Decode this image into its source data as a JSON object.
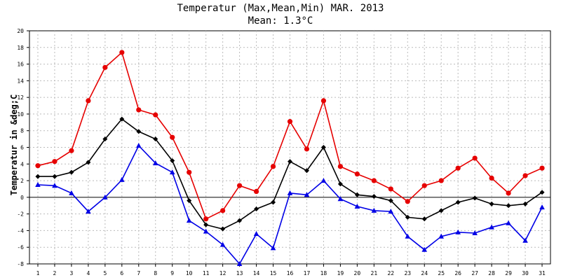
{
  "chart_data": {
    "type": "line",
    "title": "Temperatur (Max,Mean,Min) MAR. 2013",
    "subtitle": "Mean: 1.3°C",
    "ylabel": "Temperatur in &deg;C",
    "xlabel": "",
    "ylim": [
      -8,
      20
    ],
    "yticks": [
      -8,
      -6,
      -4,
      -2,
      0,
      2,
      4,
      6,
      8,
      10,
      12,
      14,
      16,
      18,
      20
    ],
    "x": [
      1,
      2,
      3,
      4,
      5,
      6,
      7,
      8,
      9,
      10,
      11,
      12,
      13,
      14,
      15,
      16,
      17,
      18,
      19,
      20,
      21,
      22,
      23,
      24,
      25,
      26,
      27,
      28,
      29,
      30,
      31
    ],
    "grid": true,
    "series": [
      {
        "key": "max",
        "color": "#e60000",
        "marker": "circle",
        "values": [
          3.8,
          4.3,
          5.6,
          11.6,
          15.6,
          17.4,
          10.5,
          9.9,
          7.2,
          3.0,
          -2.6,
          -1.6,
          1.4,
          0.7,
          3.7,
          9.1,
          5.8,
          11.6,
          3.7,
          2.8,
          2.0,
          1.0,
          -0.5,
          1.4,
          2.0,
          3.5,
          4.7,
          2.3,
          0.5,
          2.6,
          3.5
        ]
      },
      {
        "key": "mean",
        "color": "#000000",
        "marker": "diamond",
        "values": [
          2.5,
          2.5,
          3.0,
          4.2,
          7.0,
          9.4,
          7.9,
          7.0,
          4.4,
          -0.4,
          -3.3,
          -3.8,
          -2.8,
          -1.4,
          -0.6,
          4.3,
          3.2,
          6.0,
          1.6,
          0.3,
          0.1,
          -0.4,
          -2.4,
          -2.6,
          -1.6,
          -0.6,
          -0.1,
          -0.8,
          -1.0,
          -0.8,
          0.6
        ]
      },
      {
        "key": "min",
        "color": "#0000e6",
        "marker": "triangle",
        "values": [
          1.5,
          1.4,
          0.5,
          -1.7,
          0.0,
          2.1,
          6.2,
          4.1,
          3.0,
          -2.8,
          -4.1,
          -5.7,
          -8.0,
          -4.4,
          -6.1,
          0.5,
          0.3,
          2.0,
          -0.2,
          -1.1,
          -1.6,
          -1.7,
          -4.7,
          -6.3,
          -4.7,
          -4.2,
          -4.3,
          -3.6,
          -3.1,
          -5.2,
          -1.2
        ]
      }
    ]
  }
}
